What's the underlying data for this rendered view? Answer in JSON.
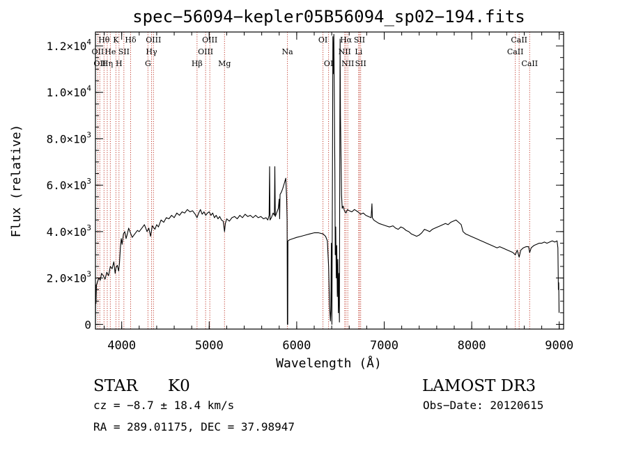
{
  "chart_data": {
    "type": "line",
    "title": "spec−56094−kepler05B56094_sp02−194.fits",
    "xlabel": "Wavelength (Å)",
    "ylabel": "Flux (relative)",
    "xlim": [
      3700,
      9050
    ],
    "ylim": [
      -200,
      12600
    ],
    "x_ticks": [
      {
        "value": 4000,
        "label": "4000"
      },
      {
        "value": 5000,
        "label": "5000"
      },
      {
        "value": 6000,
        "label": "6000"
      },
      {
        "value": 7000,
        "label": "7000"
      },
      {
        "value": 8000,
        "label": "8000"
      },
      {
        "value": 9000,
        "label": "9000"
      }
    ],
    "y_ticks": [
      {
        "value": 0,
        "mant": "0",
        "exp": ""
      },
      {
        "value": 2000,
        "mant": "2.0×10",
        "exp": "3"
      },
      {
        "value": 4000,
        "mant": "4.0×10",
        "exp": "3"
      },
      {
        "value": 6000,
        "mant": "6.0×10",
        "exp": "3"
      },
      {
        "value": 8000,
        "mant": "8.0×10",
        "exp": "3"
      },
      {
        "value": 10000,
        "mant": "1.0×10",
        "exp": "4"
      },
      {
        "value": 12000,
        "mant": "1.2×10",
        "exp": "4"
      }
    ],
    "x_minor_step": 200,
    "y_minor_step": 500,
    "line_markers": [
      {
        "wl": 3727,
        "label": "OII",
        "row": 1
      },
      {
        "wl": 3750,
        "label": "OII",
        "row": 2
      },
      {
        "wl": 3798,
        "label": "Hθ",
        "row": 0
      },
      {
        "wl": 3835,
        "label": "Hη",
        "row": 2
      },
      {
        "wl": 3870,
        "label": "He",
        "row": 1
      },
      {
        "wl": 3934,
        "label": "K",
        "row": 0
      },
      {
        "wl": 3969,
        "label": "H",
        "row": 2
      },
      {
        "wl": 4025,
        "label": "SII",
        "row": 1
      },
      {
        "wl": 4102,
        "label": "Hδ",
        "row": 0
      },
      {
        "wl": 4300,
        "label": "G",
        "row": 2
      },
      {
        "wl": 4341,
        "label": "Hγ",
        "row": 1
      },
      {
        "wl": 4363,
        "label": "OIII",
        "row": 0
      },
      {
        "wl": 4861,
        "label": "Hβ",
        "row": 2
      },
      {
        "wl": 4959,
        "label": "OIII",
        "row": 1
      },
      {
        "wl": 5007,
        "label": "OIII",
        "row": 0
      },
      {
        "wl": 5175,
        "label": "Mg",
        "row": 2
      },
      {
        "wl": 5894,
        "label": "Na",
        "row": 1
      },
      {
        "wl": 6300,
        "label": "OI",
        "row": 0
      },
      {
        "wl": 6364,
        "label": "OI",
        "row": 2
      },
      {
        "wl": 6548,
        "label": "NII",
        "row": 1
      },
      {
        "wl": 6563,
        "label": "Hα",
        "row": 0
      },
      {
        "wl": 6584,
        "label": "NII",
        "row": 2
      },
      {
        "wl": 6708,
        "label": "Li",
        "row": 1
      },
      {
        "wl": 6717,
        "label": "SII",
        "row": 0
      },
      {
        "wl": 6731,
        "label": "SII",
        "row": 2
      },
      {
        "wl": 8498,
        "label": "CaII",
        "row": 1
      },
      {
        "wl": 8542,
        "label": "CaII",
        "row": 0
      },
      {
        "wl": 8662,
        "label": "CaII",
        "row": 2
      }
    ],
    "series": [
      {
        "name": "flux",
        "points": [
          [
            3700,
            50
          ],
          [
            3703,
            1700
          ],
          [
            3706,
            900
          ],
          [
            3712,
            1700
          ],
          [
            3725,
            1850
          ],
          [
            3740,
            2000
          ],
          [
            3755,
            1900
          ],
          [
            3770,
            2200
          ],
          [
            3790,
            2100
          ],
          [
            3810,
            1950
          ],
          [
            3830,
            2250
          ],
          [
            3850,
            2100
          ],
          [
            3870,
            2500
          ],
          [
            3890,
            2400
          ],
          [
            3910,
            2700
          ],
          [
            3925,
            2200
          ],
          [
            3935,
            2450
          ],
          [
            3950,
            2550
          ],
          [
            3965,
            2300
          ],
          [
            3975,
            2650
          ],
          [
            3985,
            3300
          ],
          [
            3995,
            3700
          ],
          [
            4005,
            3450
          ],
          [
            4020,
            3900
          ],
          [
            4035,
            4000
          ],
          [
            4050,
            3700
          ],
          [
            4065,
            3900
          ],
          [
            4080,
            4150
          ],
          [
            4100,
            3950
          ],
          [
            4120,
            3750
          ],
          [
            4150,
            3900
          ],
          [
            4180,
            4050
          ],
          [
            4200,
            4000
          ],
          [
            4230,
            4150
          ],
          [
            4260,
            4300
          ],
          [
            4290,
            4000
          ],
          [
            4310,
            4150
          ],
          [
            4330,
            3800
          ],
          [
            4350,
            4250
          ],
          [
            4380,
            4100
          ],
          [
            4400,
            4300
          ],
          [
            4420,
            4200
          ],
          [
            4450,
            4500
          ],
          [
            4480,
            4400
          ],
          [
            4510,
            4600
          ],
          [
            4540,
            4550
          ],
          [
            4570,
            4700
          ],
          [
            4600,
            4600
          ],
          [
            4630,
            4800
          ],
          [
            4660,
            4700
          ],
          [
            4690,
            4850
          ],
          [
            4720,
            4800
          ],
          [
            4750,
            4950
          ],
          [
            4780,
            4850
          ],
          [
            4810,
            4900
          ],
          [
            4840,
            4750
          ],
          [
            4861,
            4600
          ],
          [
            4880,
            4800
          ],
          [
            4900,
            4950
          ],
          [
            4920,
            4750
          ],
          [
            4940,
            4850
          ],
          [
            4960,
            4700
          ],
          [
            4980,
            4800
          ],
          [
            5000,
            4850
          ],
          [
            5020,
            4700
          ],
          [
            5040,
            4800
          ],
          [
            5060,
            4600
          ],
          [
            5080,
            4700
          ],
          [
            5100,
            4550
          ],
          [
            5120,
            4650
          ],
          [
            5140,
            4500
          ],
          [
            5160,
            4450
          ],
          [
            5175,
            4000
          ],
          [
            5185,
            4350
          ],
          [
            5200,
            4550
          ],
          [
            5230,
            4450
          ],
          [
            5260,
            4600
          ],
          [
            5290,
            4650
          ],
          [
            5320,
            4550
          ],
          [
            5350,
            4700
          ],
          [
            5380,
            4600
          ],
          [
            5410,
            4750
          ],
          [
            5440,
            4650
          ],
          [
            5470,
            4700
          ],
          [
            5500,
            4600
          ],
          [
            5530,
            4700
          ],
          [
            5560,
            4600
          ],
          [
            5590,
            4650
          ],
          [
            5620,
            4550
          ],
          [
            5650,
            4600
          ],
          [
            5670,
            4500
          ],
          [
            5685,
            4700
          ],
          [
            5690,
            6800
          ],
          [
            5695,
            4500
          ],
          [
            5710,
            4600
          ],
          [
            5730,
            4800
          ],
          [
            5745,
            4700
          ],
          [
            5750,
            6800
          ],
          [
            5756,
            4650
          ],
          [
            5770,
            4800
          ],
          [
            5790,
            5000
          ],
          [
            5800,
            5400
          ],
          [
            5805,
            4550
          ],
          [
            5810,
            5600
          ],
          [
            5825,
            5700
          ],
          [
            5840,
            5850
          ],
          [
            5860,
            6100
          ],
          [
            5875,
            6300
          ],
          [
            5885,
            5400
          ],
          [
            5890,
            4500
          ],
          [
            5893,
            0
          ],
          [
            5897,
            0
          ],
          [
            5900,
            3600
          ],
          [
            5920,
            3650
          ],
          [
            5960,
            3700
          ],
          [
            6000,
            3750
          ],
          [
            6050,
            3800
          ],
          [
            6100,
            3850
          ],
          [
            6150,
            3900
          ],
          [
            6200,
            3950
          ],
          [
            6250,
            3950
          ],
          [
            6300,
            3900
          ],
          [
            6330,
            3800
          ],
          [
            6350,
            3600
          ],
          [
            6365,
            2500
          ],
          [
            6375,
            800
          ],
          [
            6385,
            150
          ],
          [
            6390,
            600
          ],
          [
            6396,
            3500
          ],
          [
            6402,
            0
          ],
          [
            6408,
            5500
          ],
          [
            6413,
            12400
          ],
          [
            6418,
            10800
          ],
          [
            6424,
            12500
          ],
          [
            6430,
            9800
          ],
          [
            6436,
            6500
          ],
          [
            6440,
            3000
          ],
          [
            6446,
            4200
          ],
          [
            6452,
            2000
          ],
          [
            6458,
            3400
          ],
          [
            6464,
            1200
          ],
          [
            6470,
            2800
          ],
          [
            6476,
            500
          ],
          [
            6482,
            2200
          ],
          [
            6488,
            100
          ],
          [
            6492,
            7000
          ],
          [
            6496,
            12300
          ],
          [
            6500,
            9000
          ],
          [
            6506,
            7200
          ],
          [
            6512,
            5600
          ],
          [
            6520,
            5000
          ],
          [
            6530,
            5100
          ],
          [
            6545,
            4900
          ],
          [
            6563,
            4800
          ],
          [
            6580,
            4950
          ],
          [
            6600,
            4900
          ],
          [
            6630,
            4850
          ],
          [
            6660,
            4950
          ],
          [
            6700,
            4850
          ],
          [
            6730,
            4750
          ],
          [
            6760,
            4800
          ],
          [
            6790,
            4700
          ],
          [
            6820,
            4650
          ],
          [
            6850,
            4600
          ],
          [
            6860,
            5200
          ],
          [
            6865,
            4600
          ],
          [
            6880,
            4500
          ],
          [
            6900,
            4450
          ],
          [
            6940,
            4350
          ],
          [
            6980,
            4300
          ],
          [
            7020,
            4250
          ],
          [
            7060,
            4200
          ],
          [
            7100,
            4250
          ],
          [
            7130,
            4150
          ],
          [
            7160,
            4100
          ],
          [
            7190,
            4200
          ],
          [
            7220,
            4150
          ],
          [
            7250,
            4050
          ],
          [
            7280,
            4000
          ],
          [
            7310,
            3900
          ],
          [
            7340,
            3850
          ],
          [
            7370,
            3800
          ],
          [
            7400,
            3850
          ],
          [
            7430,
            3950
          ],
          [
            7460,
            4100
          ],
          [
            7490,
            4050
          ],
          [
            7520,
            4000
          ],
          [
            7550,
            4100
          ],
          [
            7580,
            4150
          ],
          [
            7610,
            4200
          ],
          [
            7640,
            4250
          ],
          [
            7670,
            4300
          ],
          [
            7700,
            4350
          ],
          [
            7730,
            4300
          ],
          [
            7760,
            4400
          ],
          [
            7790,
            4450
          ],
          [
            7820,
            4500
          ],
          [
            7850,
            4400
          ],
          [
            7880,
            4300
          ],
          [
            7900,
            4000
          ],
          [
            7930,
            3900
          ],
          [
            7960,
            3850
          ],
          [
            7990,
            3800
          ],
          [
            8020,
            3750
          ],
          [
            8050,
            3700
          ],
          [
            8080,
            3650
          ],
          [
            8110,
            3600
          ],
          [
            8140,
            3550
          ],
          [
            8170,
            3500
          ],
          [
            8200,
            3450
          ],
          [
            8230,
            3400
          ],
          [
            8260,
            3350
          ],
          [
            8290,
            3300
          ],
          [
            8320,
            3350
          ],
          [
            8350,
            3300
          ],
          [
            8380,
            3250
          ],
          [
            8410,
            3200
          ],
          [
            8440,
            3150
          ],
          [
            8470,
            3100
          ],
          [
            8498,
            3000
          ],
          [
            8520,
            3200
          ],
          [
            8542,
            2900
          ],
          [
            8560,
            3200
          ],
          [
            8590,
            3300
          ],
          [
            8620,
            3350
          ],
          [
            8650,
            3350
          ],
          [
            8662,
            3100
          ],
          [
            8680,
            3300
          ],
          [
            8710,
            3400
          ],
          [
            8740,
            3450
          ],
          [
            8770,
            3500
          ],
          [
            8800,
            3500
          ],
          [
            8830,
            3550
          ],
          [
            8860,
            3500
          ],
          [
            8890,
            3550
          ],
          [
            8920,
            3600
          ],
          [
            8950,
            3550
          ],
          [
            8975,
            3600
          ],
          [
            8985,
            3300
          ],
          [
            8990,
            1500
          ],
          [
            8994,
            1800
          ],
          [
            8998,
            500
          ]
        ]
      }
    ]
  },
  "info": {
    "object_class": "STAR",
    "subclass": "K0",
    "survey": "LAMOST DR3",
    "redshift": "cz = −8.7 ± 18.4 km/s",
    "obs_date": "Obs−Date: 20120615",
    "coords": "RA = 289.01175, DEC =  37.98947"
  }
}
